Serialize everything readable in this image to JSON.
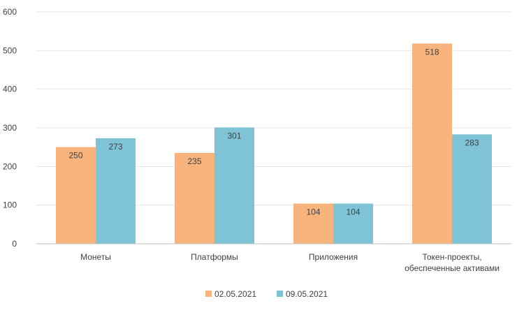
{
  "chart_data": {
    "type": "bar",
    "categories": [
      [
        "Монеты"
      ],
      [
        "Платформы"
      ],
      [
        "Приложения"
      ],
      [
        "Токен-проекты,",
        "обеспеченные активами"
      ]
    ],
    "series": [
      {
        "name": "02.05.2021",
        "values": [
          250,
          235,
          104,
          518
        ],
        "color": "#F8B47C"
      },
      {
        "name": "09.05.2021",
        "values": [
          273,
          301,
          104,
          283
        ],
        "color": "#7EC3D6"
      }
    ],
    "ylim": [
      0,
      600
    ],
    "yticks": [
      "0",
      "100",
      "200",
      "300",
      "400",
      "500",
      "600"
    ],
    "grid": true,
    "legend_position": "bottom",
    "title": "",
    "xlabel": "",
    "ylabel": ""
  }
}
